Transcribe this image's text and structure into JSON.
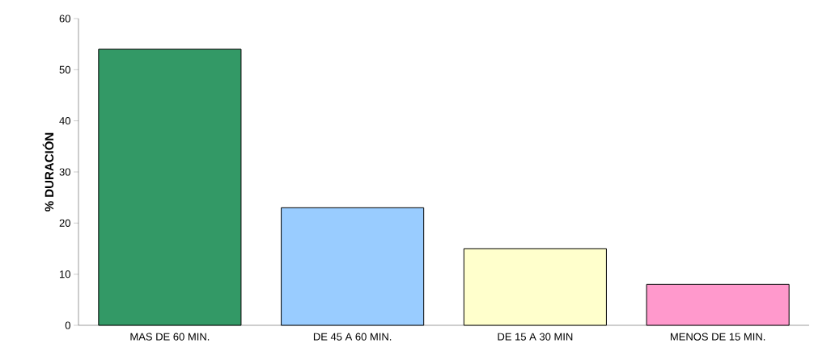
{
  "chart_data": {
    "type": "bar",
    "ylabel": "% DURACIÓN",
    "categories": [
      "MAS DE 60 MIN.",
      "DE 45 A 60 MIN.",
      "DE 15 A 30 MIN",
      "MENOS DE 15 MIN."
    ],
    "values": [
      54,
      23,
      15,
      8
    ],
    "colors": [
      "#339966",
      "#99ccff",
      "#ffffcc",
      "#ff99cc"
    ],
    "ylim": [
      0,
      60
    ],
    "yticks": [
      0,
      10,
      20,
      30,
      40,
      50,
      60
    ]
  }
}
